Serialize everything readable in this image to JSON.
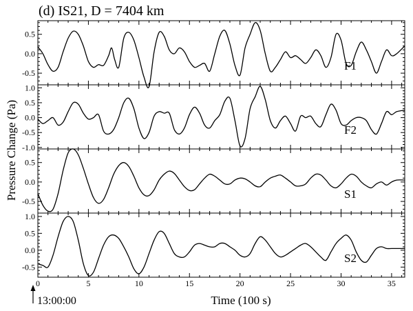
{
  "chart_data": {
    "type": "line",
    "title": "(d) IS21, D = 7404 km",
    "xlabel": "Time (100 s)",
    "ylabel": "Pressure Change (Pa)",
    "start_marker": "13:00:00",
    "xlim": [
      0,
      36.3
    ],
    "xticks": [
      0,
      5,
      10,
      15,
      20,
      25,
      30,
      35
    ],
    "grid": false,
    "panels": [
      {
        "name": "F1",
        "ylim": [
          -0.8,
          0.85
        ],
        "yticks": [
          -0.5,
          0.0,
          0.5
        ],
        "tick_labels": [
          "-0.5",
          "0.0",
          "0.5"
        ],
        "x": [
          0,
          0.5,
          1,
          1.5,
          2,
          2.5,
          3,
          3.5,
          4,
          4.5,
          5,
          5.5,
          6,
          6.5,
          7,
          7.3,
          7.6,
          8,
          8.5,
          9,
          9.5,
          10,
          10.5,
          11,
          11.5,
          12,
          12.5,
          13,
          13.5,
          14,
          14.5,
          15,
          15.5,
          16,
          16.5,
          17,
          17.5,
          18,
          18.5,
          19,
          19.5,
          20,
          20.5,
          21,
          21.5,
          22,
          22.5,
          23,
          23.5,
          24,
          24.5,
          25,
          25.5,
          26,
          26.5,
          27,
          27.5,
          28,
          28.5,
          29,
          29.5,
          30,
          30.5,
          31,
          31.5,
          32,
          32.5,
          33,
          33.5,
          34,
          34.5,
          35,
          35.5,
          36.3
        ],
        "values": [
          0.18,
          0.0,
          -0.28,
          -0.45,
          -0.35,
          0.05,
          0.4,
          0.58,
          0.5,
          0.2,
          -0.2,
          -0.35,
          -0.28,
          -0.3,
          -0.05,
          0.15,
          -0.15,
          -0.35,
          0.4,
          0.55,
          0.35,
          -0.1,
          -0.6,
          -0.85,
          0.05,
          0.55,
          0.45,
          0.1,
          0.0,
          0.15,
          0.05,
          -0.2,
          -0.35,
          -0.3,
          -0.25,
          -0.45,
          0.0,
          0.45,
          0.6,
          0.25,
          -0.3,
          -0.55,
          0.15,
          0.5,
          0.8,
          0.6,
          0.0,
          -0.45,
          -0.35,
          -0.15,
          0.05,
          -0.1,
          -0.05,
          -0.15,
          -0.25,
          -0.1,
          0.1,
          -0.05,
          -0.35,
          -0.1,
          0.5,
          0.35,
          -0.25,
          -0.3,
          0.05,
          0.3,
          0.1,
          -0.2,
          -0.5,
          -0.2,
          0.1,
          -0.05,
          0.0,
          0.2
        ]
      },
      {
        "name": "F2",
        "ylim": [
          -1.05,
          1.1
        ],
        "yticks": [
          -1.0,
          -0.5,
          0.0,
          0.5,
          1.0
        ],
        "tick_labels": [
          "-1.0",
          "-0.5",
          "0.0",
          "0.5",
          "1.0"
        ],
        "x": [
          0,
          0.5,
          1,
          1.5,
          2,
          2.5,
          3,
          3.5,
          4,
          4.5,
          5,
          5.5,
          6,
          6.5,
          7,
          7.5,
          8,
          8.5,
          9,
          9.5,
          10,
          10.5,
          11,
          11.5,
          12,
          12.5,
          13,
          13.5,
          14,
          14.5,
          15,
          15.5,
          16,
          16.5,
          17,
          17.5,
          18,
          18.5,
          19,
          19.5,
          20,
          20.5,
          21,
          21.5,
          22,
          22.5,
          23,
          23.5,
          24,
          24.5,
          25,
          25.5,
          26,
          26.5,
          27,
          27.5,
          28,
          28.5,
          29,
          29.5,
          30,
          30.5,
          31,
          31.5,
          32,
          32.5,
          33,
          33.5,
          34,
          34.5,
          35,
          35.5,
          36.3
        ],
        "values": [
          -0.05,
          -0.2,
          -0.1,
          0.0,
          -0.25,
          -0.15,
          0.2,
          0.5,
          0.45,
          0.15,
          -0.05,
          0.0,
          0.1,
          -0.45,
          -0.55,
          -0.4,
          0.0,
          0.5,
          0.65,
          0.3,
          -0.35,
          -0.7,
          -0.5,
          0.05,
          0.2,
          0.15,
          0.15,
          -0.4,
          -0.55,
          -0.35,
          0.1,
          0.35,
          0.15,
          -0.25,
          -0.35,
          -0.1,
          0.1,
          0.55,
          0.65,
          -0.1,
          -0.95,
          -0.7,
          0.3,
          0.7,
          1.05,
          0.6,
          -0.1,
          -0.35,
          -0.1,
          0.05,
          -0.2,
          -0.45,
          0.05,
          0.0,
          0.05,
          -0.2,
          -0.3,
          0.1,
          0.45,
          0.25,
          -0.2,
          -0.25,
          -0.1,
          0.0,
          0.0,
          -0.1,
          -0.4,
          -0.55,
          -0.2,
          0.2,
          0.1,
          0.2,
          0.25
        ]
      },
      {
        "name": "S1",
        "ylim": [
          -0.8,
          0.85
        ],
        "yticks": [
          -0.5,
          0.0,
          0.5
        ],
        "tick_labels": [
          "-0.5",
          "0.0",
          "0.5"
        ],
        "x": [
          0,
          0.5,
          1,
          1.5,
          2,
          2.5,
          3,
          3.5,
          4,
          4.5,
          5,
          5.5,
          6,
          6.5,
          7,
          7.5,
          8,
          8.5,
          9,
          9.5,
          10,
          10.5,
          11,
          11.5,
          12,
          12.5,
          13,
          13.5,
          14,
          14.5,
          15,
          15.5,
          16,
          16.5,
          17,
          17.5,
          18,
          18.5,
          19,
          19.5,
          20,
          20.5,
          21,
          21.5,
          22,
          22.5,
          23,
          23.5,
          24,
          24.5,
          25,
          25.5,
          26,
          26.5,
          27,
          27.5,
          28,
          28.5,
          29,
          29.5,
          30,
          30.5,
          31,
          31.5,
          32,
          32.5,
          33,
          33.5,
          34,
          34.5,
          35,
          35.5,
          36.3
        ],
        "values": [
          -0.3,
          -0.6,
          -0.75,
          -0.7,
          -0.3,
          0.3,
          0.75,
          0.85,
          0.7,
          0.35,
          -0.05,
          -0.4,
          -0.55,
          -0.45,
          -0.15,
          0.2,
          0.42,
          0.5,
          0.4,
          0.15,
          -0.15,
          -0.33,
          -0.35,
          -0.2,
          0.05,
          0.2,
          0.28,
          0.22,
          0.05,
          -0.12,
          -0.22,
          -0.2,
          -0.05,
          0.1,
          0.2,
          0.15,
          0.05,
          -0.05,
          -0.05,
          0.05,
          0.1,
          0.08,
          0.0,
          -0.1,
          -0.12,
          0.0,
          0.1,
          0.15,
          0.18,
          0.1,
          0.0,
          -0.1,
          -0.1,
          -0.05,
          0.1,
          0.2,
          0.18,
          0.05,
          -0.1,
          -0.15,
          -0.05,
          0.1,
          0.2,
          0.15,
          0.0,
          -0.1,
          -0.15,
          -0.05,
          0.0,
          -0.08,
          0.0,
          0.05,
          0.05
        ]
      },
      {
        "name": "S2",
        "ylim": [
          -0.8,
          1.1
        ],
        "yticks": [
          -0.5,
          0.0,
          0.5,
          1.0
        ],
        "tick_labels": [
          "-0.5",
          "0.0",
          "0.5",
          "1.0"
        ],
        "x": [
          0,
          0.5,
          1,
          1.5,
          2,
          2.5,
          3,
          3.5,
          4,
          4.5,
          5,
          5.5,
          6,
          6.5,
          7,
          7.5,
          8,
          8.5,
          9,
          9.5,
          10,
          10.5,
          11,
          11.5,
          12,
          12.5,
          13,
          13.5,
          14,
          14.5,
          15,
          15.5,
          16,
          16.5,
          17,
          17.5,
          18,
          18.5,
          19,
          19.5,
          20,
          20.5,
          21,
          21.5,
          22,
          22.5,
          23,
          23.5,
          24,
          24.5,
          25,
          25.5,
          26,
          26.5,
          27,
          27.5,
          28,
          28.5,
          29,
          29.5,
          30,
          30.5,
          31,
          31.5,
          32,
          32.5,
          33,
          33.5,
          34,
          34.5,
          35,
          35.5,
          36.3
        ],
        "values": [
          -0.4,
          -0.45,
          -0.5,
          -0.15,
          0.4,
          0.85,
          1.0,
          0.85,
          0.3,
          -0.4,
          -0.75,
          -0.65,
          -0.25,
          0.15,
          0.4,
          0.45,
          0.35,
          0.1,
          -0.2,
          -0.55,
          -0.7,
          -0.5,
          -0.1,
          0.3,
          0.55,
          0.5,
          0.2,
          -0.1,
          -0.2,
          -0.2,
          -0.05,
          0.15,
          0.2,
          0.15,
          0.1,
          0.1,
          0.2,
          0.2,
          0.1,
          0.0,
          -0.15,
          -0.2,
          -0.1,
          0.2,
          0.4,
          0.3,
          0.1,
          -0.1,
          -0.2,
          -0.15,
          -0.05,
          0.05,
          0.15,
          0.2,
          0.1,
          -0.05,
          -0.2,
          -0.3,
          -0.05,
          0.2,
          0.35,
          0.45,
          0.3,
          -0.05,
          -0.3,
          -0.35,
          -0.15,
          0.05,
          0.1,
          0.05,
          0.05,
          0.05,
          0.05
        ]
      }
    ]
  }
}
